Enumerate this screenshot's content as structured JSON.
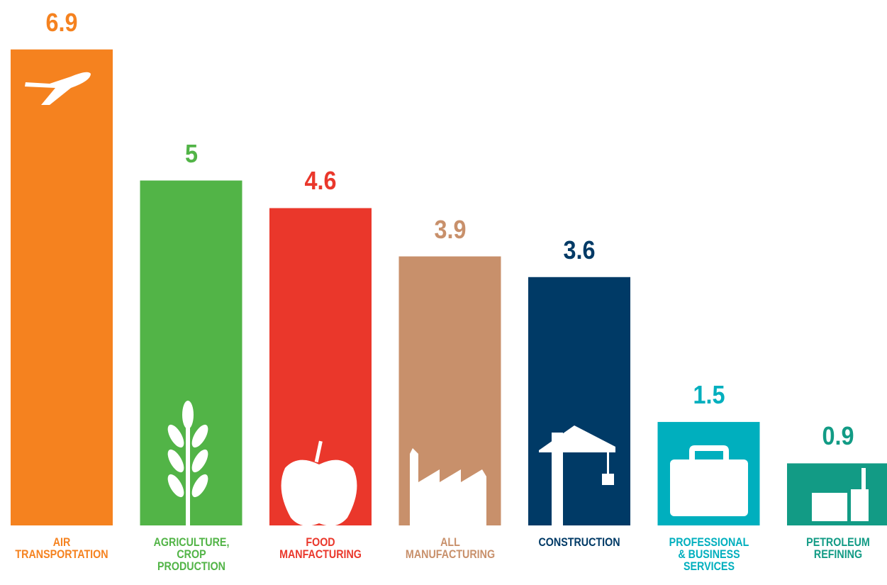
{
  "chart_data": {
    "type": "bar",
    "categories": [
      "AIR\nTRANSPORTATION",
      "AGRICULTURE,\nCROP\nPRODUCTION",
      "FOOD\nMANFACTURING",
      "ALL\nMANUFACTURING",
      "CONSTRUCTION",
      "PROFESSIONAL\n& BUSINESS\nSERVICES",
      "PETROLEUM\nREFINING"
    ],
    "values": [
      6.9,
      5,
      4.6,
      3.9,
      3.6,
      1.5,
      0.9
    ],
    "colors": [
      "#f5821f",
      "#52b447",
      "#ea372b",
      "#c8906b",
      "#003a66",
      "#00afbe",
      "#129b85"
    ],
    "ylim": [
      0,
      7
    ]
  }
}
